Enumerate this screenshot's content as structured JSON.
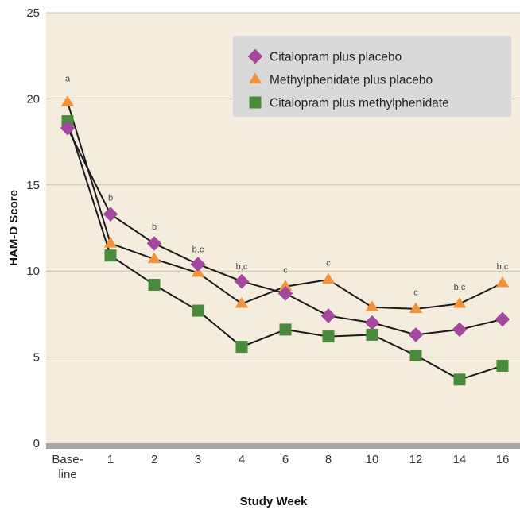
{
  "colors": {
    "plot_background": "#f4ecdc",
    "gridline": "#cdbfa7",
    "baseline_bar": "#a6a6a6",
    "series_line": "#1a1a1a",
    "legend_background": "#d9d9d9"
  },
  "chart_data": {
    "type": "line",
    "title": "",
    "xlabel": "Study Week",
    "ylabel": "HAM-D Score",
    "ylim": [
      0,
      25
    ],
    "yticks": [
      "0",
      "5",
      "10",
      "15",
      "20",
      "25"
    ],
    "grid": "horizontal",
    "legend_position": "top-right",
    "categories": [
      [
        "Base-",
        "line"
      ],
      [
        "1"
      ],
      [
        "2"
      ],
      [
        "3"
      ],
      [
        "4"
      ],
      [
        "6"
      ],
      [
        "8"
      ],
      [
        "10"
      ],
      [
        "12"
      ],
      [
        "14"
      ],
      [
        "16"
      ]
    ],
    "series": [
      {
        "name": "Citalopram plus placebo",
        "marker": "diamond",
        "color": "#a4479e",
        "values": [
          18.3,
          13.3,
          11.6,
          10.4,
          9.4,
          8.7,
          7.4,
          7.0,
          6.3,
          6.6,
          7.2
        ]
      },
      {
        "name": "Methylphenidate plus placebo",
        "marker": "triangle",
        "color": "#f2923a",
        "values": [
          19.8,
          11.6,
          10.7,
          9.9,
          8.1,
          9.1,
          9.5,
          7.9,
          7.8,
          8.1,
          9.3
        ]
      },
      {
        "name": "Citalopram plus methylphenidate",
        "marker": "square",
        "color": "#4a8a3b",
        "values": [
          18.7,
          10.9,
          9.2,
          7.7,
          5.6,
          6.6,
          6.2,
          6.3,
          5.1,
          3.7,
          4.5
        ]
      }
    ],
    "annotations": [
      {
        "category_index": 0,
        "text": "a",
        "y": 21.0
      },
      {
        "category_index": 1,
        "text": "b",
        "y": 14.1
      },
      {
        "category_index": 2,
        "text": "b",
        "y": 12.4
      },
      {
        "category_index": 3,
        "text": "b,c",
        "y": 11.1
      },
      {
        "category_index": 4,
        "text": "b,c",
        "y": 10.1
      },
      {
        "category_index": 5,
        "text": "c",
        "y": 9.9
      },
      {
        "category_index": 6,
        "text": "c",
        "y": 10.3
      },
      {
        "category_index": 8,
        "text": "c",
        "y": 8.6
      },
      {
        "category_index": 9,
        "text": "b,c",
        "y": 8.9
      },
      {
        "category_index": 10,
        "text": "b,c",
        "y": 10.1
      }
    ]
  }
}
